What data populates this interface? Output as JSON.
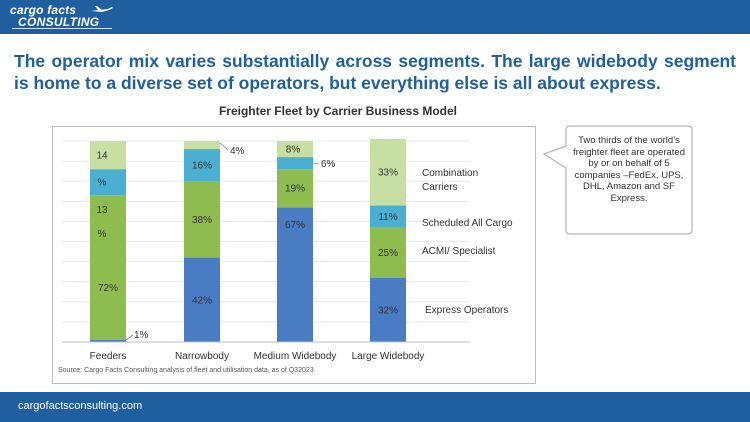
{
  "header": {
    "logo_line1": "cargo facts",
    "logo_line2": "CONSULTING"
  },
  "headline": "The operator mix varies substantially across segments. The large widebody segment is home to a diverse set of operators, but everything else is all about express.",
  "callout": {
    "text": "Two thirds of the world’s freighter fleet are operated by or on behalf of 5 companies –FedEx, UPS, DHL, Amazon and SF Express."
  },
  "footer": {
    "link": "cargofactsconsulting.com"
  },
  "colors": {
    "brand_blue": "#1f5fa0",
    "express": "#4a7cc4",
    "acmi": "#8fbc4e",
    "scheduled": "#4aafd0",
    "combination": "#c8dfa4"
  },
  "chart_data": {
    "type": "bar",
    "stacked": true,
    "title": "Freighter Fleet by Carrier Business Model",
    "categories": [
      "Feeders",
      "Narrowbody",
      "Medium Widebody",
      "Large Widebody"
    ],
    "ylim": [
      0,
      100
    ],
    "series": [
      {
        "name": "Express Operators",
        "color": "#4a7cc4",
        "values": [
          1,
          42,
          67,
          32
        ],
        "labels": [
          "1%",
          "42%",
          "67%",
          "32%"
        ]
      },
      {
        "name": "ACMI/ Specialist",
        "color": "#8fbc4e",
        "values": [
          72,
          38,
          19,
          25
        ],
        "labels": [
          "72%",
          "38%",
          "19%",
          "25%"
        ]
      },
      {
        "name": "Scheduled All Cargo",
        "color": "#4aafd0",
        "values": [
          13,
          16,
          6,
          11
        ],
        "labels": [
          "%",
          "16%",
          "6%",
          "11%"
        ]
      },
      {
        "name": "Combination Carriers",
        "color": "#c8dfa4",
        "values": [
          14,
          4,
          8,
          33
        ],
        "labels": [
          "14",
          "4%",
          "8%",
          "33%"
        ]
      }
    ],
    "feeders_extra_label": "13",
    "feeders_extra_label2": "%",
    "source": "Source: Cargo Facts Consulting analysis of fleet and utilisation data, as of Q32023",
    "grid": true,
    "legend": "right"
  }
}
